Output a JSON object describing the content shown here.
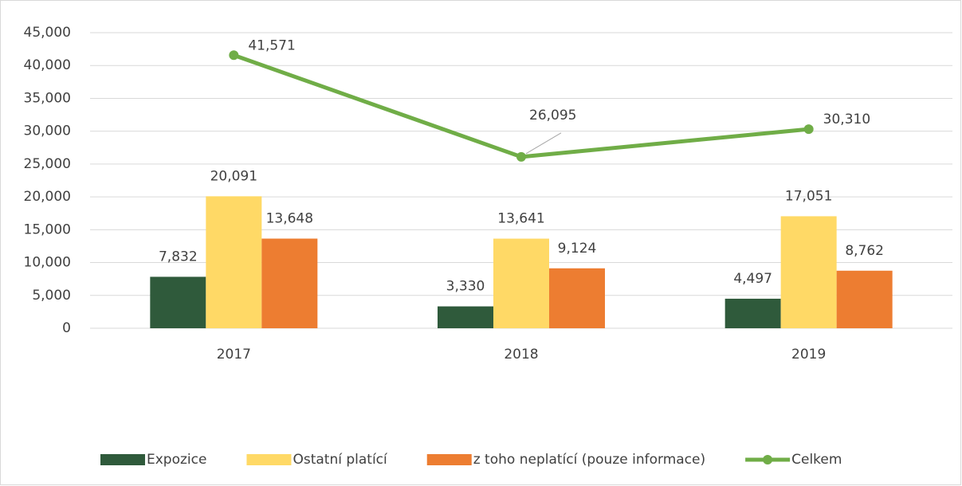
{
  "chart_data": {
    "type": "bar",
    "categories": [
      "2017",
      "2018",
      "2019"
    ],
    "series": [
      {
        "name": "Expozice",
        "color": "#2f5a3b",
        "values": [
          7832,
          3330,
          4497
        ],
        "value_labels": [
          "7,832",
          "3,330",
          "4,497"
        ]
      },
      {
        "name": "Ostatní platící",
        "color": "#ffd966",
        "values": [
          20091,
          13641,
          17051
        ],
        "value_labels": [
          "20,091",
          "13,641",
          "17,051"
        ]
      },
      {
        "name": "z toho neplatící (pouze informace)",
        "color": "#ed7d31",
        "values": [
          13648,
          9124,
          8762
        ],
        "value_labels": [
          "13,648",
          "9,124",
          "8,762"
        ]
      },
      {
        "name": "Celkem",
        "type": "line",
        "color": "#70ad47",
        "values": [
          41571,
          26095,
          30310
        ],
        "value_labels": [
          "41,571",
          "26,095",
          "30,310"
        ]
      }
    ],
    "ylim": [
      0,
      45000
    ],
    "yticks": [
      0,
      {
        "value": 5000,
        "label": "5,000"
      },
      {
        "value": 10000,
        "label": "10,000"
      },
      {
        "value": 15000,
        "label": "15,000"
      },
      {
        "value": 20000,
        "label": "20,000"
      },
      {
        "value": 25000,
        "label": "25,000"
      },
      {
        "value": 30000,
        "label": "30,000"
      },
      {
        "value": 35000,
        "label": "35,000"
      },
      {
        "value": 40000,
        "label": "40,000"
      },
      {
        "value": 45000,
        "label": "45,000"
      }
    ],
    "grid": true,
    "legend": "bottom"
  }
}
